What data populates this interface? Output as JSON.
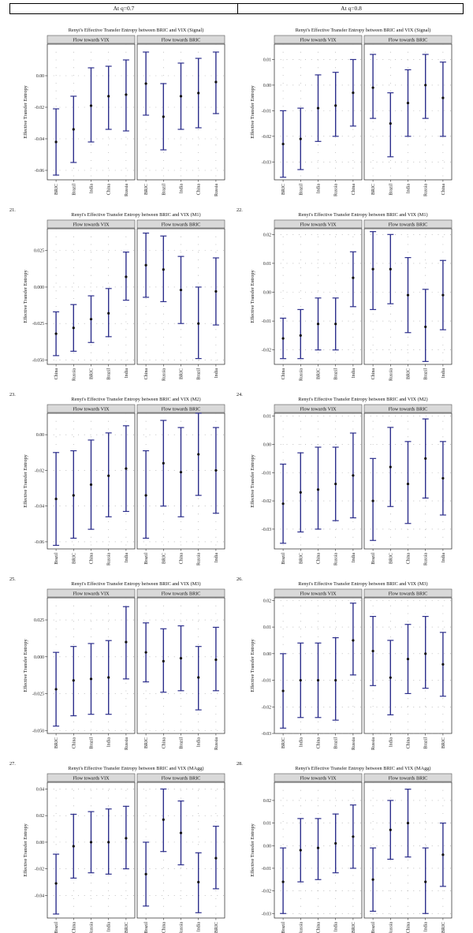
{
  "header": {
    "left": "At q=0.7",
    "right": "At q=0.8"
  },
  "common": {
    "ylabel": "Effective Transfer Entropy",
    "panel_left": "Flow towards VIX",
    "panel_right": "Flow towards BRIC",
    "colors": {
      "bar": "#2d2f8c",
      "point": "#111111",
      "strip": "#d9d9d9"
    }
  },
  "chart_data": [
    {
      "num": "21.",
      "type": "errorbar",
      "title": "Renyi's Effective Transfer Entropy between BRIC and VIX (Signal)",
      "ylim": [
        -0.066,
        0.02
      ],
      "yticks": [
        -0.06,
        -0.04,
        -0.02,
        0.0
      ],
      "ytick_labels": [
        "-0.06",
        "-0.04",
        "-0.02",
        "0.00"
      ],
      "panels": [
        {
          "categories": [
            "BRIC",
            "Brazil",
            "India",
            "China",
            "Russia"
          ],
          "mean": [
            -0.042,
            -0.034,
            -0.019,
            -0.013,
            -0.012
          ],
          "lower": [
            -0.063,
            -0.055,
            -0.042,
            -0.034,
            -0.035
          ],
          "upper": [
            -0.021,
            -0.013,
            0.005,
            0.006,
            0.01
          ]
        },
        {
          "categories": [
            "BRIC",
            "Brazil",
            "India",
            "China",
            "Russia"
          ],
          "mean": [
            -0.005,
            -0.026,
            -0.013,
            -0.011,
            -0.004
          ],
          "lower": [
            -0.025,
            -0.047,
            -0.034,
            -0.033,
            -0.024
          ],
          "upper": [
            0.015,
            -0.005,
            0.008,
            0.011,
            0.015
          ]
        }
      ]
    },
    {
      "num": "22.",
      "type": "errorbar",
      "title": "Renyi's Effective Transfer Entropy between BRIC and VIX (Signal)",
      "ylim": [
        -0.037,
        0.016
      ],
      "yticks": [
        -0.03,
        -0.02,
        -0.01,
        0.0,
        0.01
      ],
      "ytick_labels": [
        "-0.03",
        "-0.02",
        "-0.01",
        "0.00",
        "0.01"
      ],
      "panels": [
        {
          "categories": [
            "BRIC",
            "Brazil",
            "India",
            "Russia",
            "China"
          ],
          "mean": [
            -0.023,
            -0.021,
            -0.009,
            -0.008,
            -0.003
          ],
          "lower": [
            -0.036,
            -0.033,
            -0.022,
            -0.02,
            -0.016
          ],
          "upper": [
            -0.01,
            -0.009,
            0.004,
            0.005,
            0.01
          ]
        },
        {
          "categories": [
            "BRIC",
            "Brazil",
            "India",
            "Russia",
            "China"
          ],
          "mean": [
            -0.001,
            -0.015,
            -0.007,
            0.0,
            -0.005
          ],
          "lower": [
            -0.013,
            -0.028,
            -0.02,
            -0.013,
            -0.02
          ],
          "upper": [
            0.012,
            -0.003,
            0.006,
            0.012,
            0.009
          ]
        }
      ]
    },
    {
      "num": "23.",
      "type": "errorbar",
      "title": "Renyi's Effective Transfer Entropy between BRIC and VIX (M1)",
      "ylim": [
        -0.053,
        0.04
      ],
      "yticks": [
        -0.05,
        -0.025,
        0.0,
        0.025
      ],
      "ytick_labels": [
        "-0.050",
        "-0.025",
        "0.000",
        "0.025"
      ],
      "panels": [
        {
          "categories": [
            "China",
            "Russia",
            "BRIC",
            "Brazil",
            "India"
          ],
          "mean": [
            -0.032,
            -0.028,
            -0.022,
            -0.018,
            0.007
          ],
          "lower": [
            -0.047,
            -0.044,
            -0.038,
            -0.034,
            -0.009
          ],
          "upper": [
            -0.017,
            -0.012,
            -0.006,
            -0.001,
            0.024
          ]
        },
        {
          "categories": [
            "China",
            "Russia",
            "BRIC",
            "Brazil",
            "India"
          ],
          "mean": [
            0.015,
            0.012,
            -0.002,
            -0.025,
            -0.003
          ],
          "lower": [
            -0.007,
            -0.01,
            -0.025,
            -0.049,
            -0.026
          ],
          "upper": [
            0.037,
            0.035,
            0.021,
            0.0,
            0.02
          ]
        }
      ]
    },
    {
      "num": "24.",
      "type": "errorbar",
      "title": "Renyi's Effective Transfer Entropy between BRIC and VIX (M1)",
      "ylim": [
        -0.025,
        0.022
      ],
      "yticks": [
        -0.02,
        -0.01,
        0.0,
        0.01,
        0.02
      ],
      "ytick_labels": [
        "-0.02",
        "-0.01",
        "0.00",
        "0.01",
        "0.02"
      ],
      "panels": [
        {
          "categories": [
            "China",
            "Russia",
            "BRIC",
            "Brazil",
            "India"
          ],
          "mean": [
            -0.016,
            -0.015,
            -0.011,
            -0.011,
            0.005
          ],
          "lower": [
            -0.023,
            -0.023,
            -0.02,
            -0.02,
            -0.005
          ],
          "upper": [
            -0.009,
            -0.006,
            -0.002,
            -0.002,
            0.014
          ]
        },
        {
          "categories": [
            "China",
            "Russia",
            "BRIC",
            "Brazil",
            "India"
          ],
          "mean": [
            0.008,
            0.008,
            -0.001,
            -0.012,
            -0.001
          ],
          "lower": [
            -0.006,
            -0.004,
            -0.014,
            -0.024,
            -0.013
          ],
          "upper": [
            0.021,
            0.02,
            0.012,
            0.001,
            0.011
          ]
        }
      ]
    },
    {
      "num": "25.",
      "type": "errorbar",
      "title": "Renyi's Effective Transfer Entropy between BRIC and VIX (M2)",
      "ylim": [
        -0.064,
        0.012
      ],
      "yticks": [
        -0.06,
        -0.04,
        -0.02,
        0.0
      ],
      "ytick_labels": [
        "-0.06",
        "-0.04",
        "-0.02",
        "0.00"
      ],
      "panels": [
        {
          "categories": [
            "Brazil",
            "BRIC",
            "China",
            "Russia",
            "India"
          ],
          "mean": [
            -0.036,
            -0.034,
            -0.028,
            -0.023,
            -0.019
          ],
          "lower": [
            -0.062,
            -0.058,
            -0.053,
            -0.046,
            -0.043
          ],
          "upper": [
            -0.01,
            -0.009,
            -0.003,
            0.001,
            0.005
          ]
        },
        {
          "categories": [
            "Brazil",
            "BRIC",
            "China",
            "Russia",
            "India"
          ],
          "mean": [
            -0.034,
            -0.016,
            -0.021,
            -0.011,
            -0.02
          ],
          "lower": [
            -0.058,
            -0.04,
            -0.046,
            -0.034,
            -0.044
          ],
          "upper": [
            -0.009,
            0.008,
            0.004,
            0.012,
            0.004
          ]
        }
      ]
    },
    {
      "num": "26.",
      "type": "errorbar",
      "title": "Renyi's Effective Transfer Entropy between BRIC and VIX (M2)",
      "ylim": [
        -0.037,
        0.011
      ],
      "yticks": [
        -0.03,
        -0.02,
        -0.01,
        0.0,
        0.01
      ],
      "ytick_labels": [
        "-0.03",
        "-0.02",
        "-0.01",
        "0.00",
        "0.01"
      ],
      "panels": [
        {
          "categories": [
            "Brazil",
            "BRIC",
            "China",
            "Russia",
            "India"
          ],
          "mean": [
            -0.021,
            -0.017,
            -0.016,
            -0.014,
            -0.011
          ],
          "lower": [
            -0.035,
            -0.031,
            -0.03,
            -0.027,
            -0.026
          ],
          "upper": [
            -0.007,
            -0.003,
            -0.001,
            -0.001,
            0.004
          ]
        },
        {
          "categories": [
            "Brazil",
            "BRIC",
            "China",
            "Russia",
            "India"
          ],
          "mean": [
            -0.02,
            -0.008,
            -0.014,
            -0.005,
            -0.012
          ],
          "lower": [
            -0.034,
            -0.022,
            -0.028,
            -0.019,
            -0.025
          ],
          "upper": [
            -0.005,
            0.006,
            0.001,
            0.009,
            0.001
          ]
        }
      ]
    },
    {
      "num": "27.",
      "type": "errorbar",
      "title": "Renyi's Effective Transfer Entropy between BRIC and VIX (M3)",
      "ylim": [
        -0.052,
        0.04
      ],
      "yticks": [
        -0.05,
        -0.025,
        0.0,
        0.025
      ],
      "ytick_labels": [
        "-0.050",
        "-0.025",
        "0.000",
        "0.025"
      ],
      "panels": [
        {
          "categories": [
            "BRIC",
            "China",
            "Brazil",
            "India",
            "Russia"
          ],
          "mean": [
            -0.022,
            -0.016,
            -0.015,
            -0.014,
            0.01
          ],
          "lower": [
            -0.047,
            -0.04,
            -0.039,
            -0.039,
            -0.015
          ],
          "upper": [
            0.003,
            0.007,
            0.009,
            0.011,
            0.034
          ]
        },
        {
          "categories": [
            "BRIC",
            "China",
            "Brazil",
            "India",
            "Russia"
          ],
          "mean": [
            0.003,
            -0.003,
            -0.001,
            -0.014,
            -0.002
          ],
          "lower": [
            -0.017,
            -0.024,
            -0.023,
            -0.036,
            -0.023
          ],
          "upper": [
            0.023,
            0.019,
            0.021,
            0.007,
            0.02
          ]
        }
      ]
    },
    {
      "num": "28.",
      "type": "errorbar",
      "title": "Renyi's Effective Transfer Entropy between BRIC and VIX (M3)",
      "ylim": [
        -0.03,
        0.021
      ],
      "yticks": [
        -0.03,
        -0.02,
        -0.01,
        0.0,
        0.01,
        0.02
      ],
      "ytick_labels": [
        "-0.03",
        "-0.02",
        "-0.01",
        "0.00",
        "0.01",
        "0.02"
      ],
      "panels": [
        {
          "categories": [
            "BRIC",
            "India",
            "China",
            "Brazil",
            "Russia"
          ],
          "mean": [
            -0.014,
            -0.01,
            -0.01,
            -0.01,
            0.005
          ],
          "lower": [
            -0.028,
            -0.024,
            -0.024,
            -0.025,
            -0.008
          ],
          "upper": [
            0.0,
            0.004,
            0.004,
            0.006,
            0.019
          ]
        },
        {
          "categories": [
            "Russia",
            "India",
            "China",
            "Brazil",
            "BRIC"
          ],
          "mean": [
            0.001,
            -0.009,
            -0.002,
            0.0,
            -0.004
          ],
          "lower": [
            -0.012,
            -0.023,
            -0.015,
            -0.013,
            -0.016
          ],
          "upper": [
            0.014,
            0.005,
            0.011,
            0.014,
            0.008
          ]
        }
      ]
    },
    {
      "num": "29.",
      "type": "errorbar",
      "title": "Renyi's Effective Transfer Entropy between BRIC and VIX (MAgg)",
      "ylim": [
        -0.057,
        0.045
      ],
      "yticks": [
        -0.04,
        -0.02,
        0.0,
        0.02,
        0.04
      ],
      "ytick_labels": [
        "-0.04",
        "-0.02",
        "0.00",
        "0.02",
        "0.04"
      ],
      "panels": [
        {
          "categories": [
            "Brazil",
            "China",
            "Russia",
            "India",
            "BRIC"
          ],
          "mean": [
            -0.031,
            -0.003,
            0.0,
            0.0,
            0.003
          ],
          "lower": [
            -0.054,
            -0.027,
            -0.023,
            -0.024,
            -0.02
          ],
          "upper": [
            -0.009,
            0.021,
            0.023,
            0.025,
            0.027
          ]
        },
        {
          "categories": [
            "Brazil",
            "China",
            "Russia",
            "India",
            "BRIC"
          ],
          "mean": [
            -0.024,
            0.017,
            0.007,
            -0.03,
            -0.012
          ],
          "lower": [
            -0.048,
            -0.007,
            -0.017,
            -0.053,
            -0.035
          ],
          "upper": [
            0.0,
            0.04,
            0.031,
            -0.008,
            0.012
          ]
        }
      ]
    },
    {
      "num": "30.",
      "type": "errorbar",
      "title": "Renyi's Effective Transfer Entropy between BRIC and VIX (MAgg)",
      "ylim": [
        -0.032,
        0.028
      ],
      "yticks": [
        -0.03,
        -0.02,
        -0.01,
        0.0,
        0.01,
        0.02
      ],
      "ytick_labels": [
        "-0.03",
        "-0.02",
        "-0.01",
        "0.00",
        "0.01",
        "0.02"
      ],
      "panels": [
        {
          "categories": [
            "Brazil",
            "Russia",
            "China",
            "India",
            "BRIC"
          ],
          "mean": [
            -0.016,
            -0.002,
            -0.001,
            0.001,
            0.004
          ],
          "lower": [
            -0.03,
            -0.016,
            -0.015,
            -0.012,
            -0.01
          ],
          "upper": [
            -0.001,
            0.012,
            0.012,
            0.014,
            0.018
          ]
        },
        {
          "categories": [
            "Brazil",
            "Russia",
            "China",
            "India",
            "BRIC"
          ],
          "mean": [
            -0.015,
            0.007,
            0.01,
            -0.016,
            -0.004
          ],
          "lower": [
            -0.029,
            -0.006,
            -0.005,
            -0.03,
            -0.018
          ],
          "upper": [
            -0.001,
            0.02,
            0.025,
            -0.001,
            0.01
          ]
        }
      ]
    }
  ]
}
